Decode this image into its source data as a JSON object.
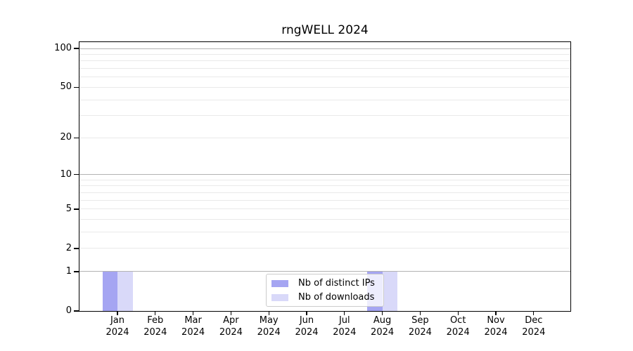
{
  "figure": {
    "title": "rngWELL 2024"
  },
  "chart_data": {
    "type": "bar",
    "title": "rngWELL 2024",
    "categories": [
      "Jan 2024",
      "Feb 2024",
      "Mar 2024",
      "Apr 2024",
      "May 2024",
      "Jun 2024",
      "Jul 2024",
      "Aug 2024",
      "Sep 2024",
      "Oct 2024",
      "Nov 2024",
      "Dec 2024"
    ],
    "x_tick_months": [
      "Jan",
      "Feb",
      "Mar",
      "Apr",
      "May",
      "Jun",
      "Jul",
      "Aug",
      "Sep",
      "Oct",
      "Nov",
      "Dec"
    ],
    "x_tick_year": "2024",
    "series": [
      {
        "name": "Nb of distinct IPs",
        "color": "#a5a5f2",
        "values": [
          1,
          0,
          0,
          0,
          0,
          0,
          0,
          1,
          0,
          0,
          0,
          0
        ]
      },
      {
        "name": "Nb of downloads",
        "color": "#d9d9f9",
        "values": [
          1,
          0,
          0,
          0,
          0,
          0,
          0,
          1,
          0,
          0,
          0,
          0
        ]
      }
    ],
    "yscale": "log1p",
    "ylim": [
      0,
      112
    ],
    "y_tick_values": [
      0,
      1,
      2,
      5,
      10,
      20,
      50,
      100
    ],
    "y_tick_labels": [
      "0",
      "1",
      "2",
      "5",
      "10",
      "20",
      "50",
      "100"
    ],
    "major_gridline_values": [
      1,
      10,
      100
    ],
    "minor_gridline_values": [
      2,
      3,
      4,
      5,
      6,
      7,
      8,
      9,
      20,
      30,
      40,
      50,
      60,
      70,
      80,
      90
    ],
    "grid": "both",
    "legend_position": "lower center"
  },
  "legend": {
    "items": [
      "Nb of distinct IPs",
      "Nb of downloads"
    ]
  },
  "colors": {
    "background": "#ffffff",
    "bar_distinct_ips": "#a5a5f2",
    "bar_downloads": "#d9d9f9",
    "grid_major": "#b3b3b3",
    "grid_minor": "#e9e9e9",
    "axis": "#000000",
    "legend_border": "#cccccc",
    "text": "#000000"
  }
}
